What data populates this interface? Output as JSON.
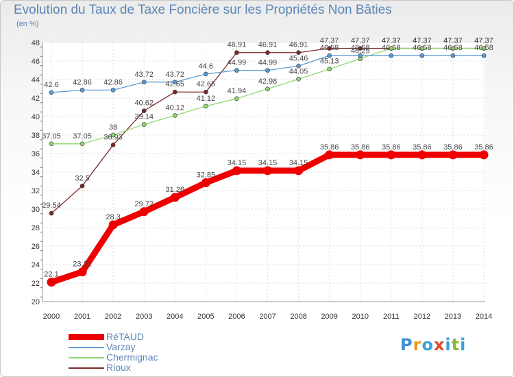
{
  "header": {
    "title": "Evolution du Taux de Taxe Foncière sur les Propriétés Non Bâties",
    "subtitle": "(en %)"
  },
  "logo": {
    "text": "Proxiti"
  },
  "chart_data": {
    "type": "line",
    "title": "Evolution du Taux de Taxe Foncière sur les Propriétés Non Bâties",
    "ylabel": "(en %)",
    "xlabel": "",
    "ylim": [
      20,
      48
    ],
    "yticks": [
      20,
      22,
      24,
      26,
      28,
      30,
      32,
      34,
      36,
      38,
      40,
      42,
      44,
      46,
      48
    ],
    "grid": true,
    "legend_position": "bottom-left",
    "categories": [
      "2000",
      "2001",
      "2002",
      "2003",
      "2004",
      "2005",
      "2006",
      "2007",
      "2008",
      "2009",
      "2010",
      "2011",
      "2012",
      "2013",
      "2014"
    ],
    "series": [
      {
        "name": "RéTAUD",
        "color": "#ee0000",
        "values": [
          22.1,
          23.21,
          28.3,
          29.72,
          31.26,
          32.85,
          34.15,
          34.15,
          34.15,
          35.86,
          35.86,
          35.86,
          35.86,
          35.86,
          35.86
        ],
        "labels": [
          "22.1",
          "23.21",
          "28.3",
          "29.72",
          "31.26",
          "32.85",
          "34.15",
          "34.15",
          "34.15",
          "35.86",
          "35.86",
          "35.86",
          "35.86",
          "35.86",
          "35.86"
        ]
      },
      {
        "name": "Varzay",
        "color": "#5b9bd5",
        "values": [
          42.6,
          42.86,
          42.86,
          43.72,
          43.72,
          44.6,
          44.99,
          44.99,
          45.46,
          46.58,
          46.58,
          46.58,
          46.58,
          46.58,
          46.58
        ],
        "labels": [
          "42.6",
          "42.86",
          "42.86",
          "43.72",
          "43.72",
          "44.6",
          "44.99",
          "44.99",
          "45.46",
          "46.58",
          "46.58",
          "46.58",
          "46.58",
          "46.58",
          "46.58"
        ]
      },
      {
        "name": "Chermignac",
        "color": "#90d870",
        "values": [
          37.05,
          37.05,
          38,
          39.14,
          40.12,
          41.12,
          41.94,
          42.98,
          44.05,
          45.13,
          46.25,
          47.37,
          47.37,
          47.37,
          47.37
        ],
        "labels": [
          "37.05",
          "37.05",
          "38",
          "39.14",
          "40.12",
          "41.12",
          "41.94",
          "42.98",
          "44.05",
          "45.13",
          "46.25",
          "47.37",
          "47.37",
          "47.37",
          "47.37"
        ]
      },
      {
        "name": "Rioux",
        "color": "#7a2a2a",
        "values": [
          29.54,
          32.5,
          36.93,
          40.62,
          42.65,
          42.65,
          46.91,
          46.91,
          46.91,
          47.37,
          47.37,
          47.37,
          47.37,
          47.37,
          47.37
        ],
        "labels": [
          "29.54",
          "32.5",
          "36.93",
          "40.62",
          "42.65",
          "42.65",
          "46.91",
          "46.91",
          "46.91",
          "47.37",
          "47.37",
          "47.37",
          "47.37",
          "47.37",
          "47.37"
        ]
      }
    ]
  }
}
